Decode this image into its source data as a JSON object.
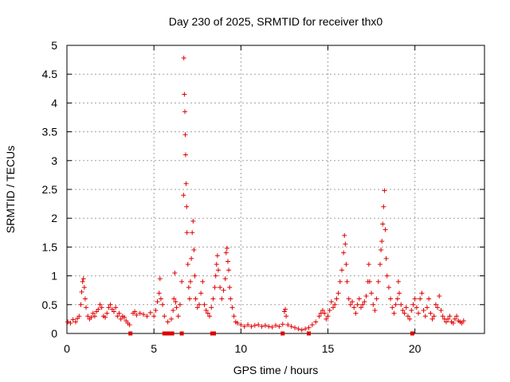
{
  "chart_data": {
    "type": "scatter",
    "title": "Day 230 of 2025, SRMTID for receiver thx0",
    "xlabel": "GPS time / hours",
    "ylabel": "SRMTID / TECUs",
    "xlim": [
      0,
      24
    ],
    "ylim": [
      0,
      5
    ],
    "xticks": [
      0,
      5,
      10,
      15,
      20
    ],
    "xtick_labels": [
      "0",
      "5",
      "10",
      "15",
      "20"
    ],
    "yticks": [
      0,
      0.5,
      1,
      1.5,
      2,
      2.5,
      3,
      3.5,
      4,
      4.5,
      5
    ],
    "ytick_labels": [
      "0",
      "0.5",
      "1",
      "1.5",
      "2",
      "2.5",
      "3",
      "3.5",
      "4",
      "4.5",
      "5"
    ],
    "grid": true,
    "marker": "plus",
    "color": "#e00000",
    "series": [
      {
        "name": "SRMTID",
        "points": [
          [
            0.05,
            0.2
          ],
          [
            0.2,
            0.18
          ],
          [
            0.35,
            0.24
          ],
          [
            0.5,
            0.2
          ],
          [
            0.6,
            0.26
          ],
          [
            0.7,
            0.3
          ],
          [
            0.8,
            0.5
          ],
          [
            0.85,
            0.72
          ],
          [
            0.9,
            0.9
          ],
          [
            0.95,
            0.95
          ],
          [
            1.0,
            0.8
          ],
          [
            1.05,
            0.6
          ],
          [
            1.1,
            0.45
          ],
          [
            1.2,
            0.3
          ],
          [
            1.3,
            0.25
          ],
          [
            1.4,
            0.28
          ],
          [
            1.5,
            0.35
          ],
          [
            1.6,
            0.3
          ],
          [
            1.7,
            0.38
          ],
          [
            1.8,
            0.42
          ],
          [
            1.9,
            0.5
          ],
          [
            2.0,
            0.45
          ],
          [
            2.1,
            0.3
          ],
          [
            2.2,
            0.28
          ],
          [
            2.3,
            0.35
          ],
          [
            2.4,
            0.45
          ],
          [
            2.5,
            0.5
          ],
          [
            2.6,
            0.42
          ],
          [
            2.7,
            0.38
          ],
          [
            2.8,
            0.45
          ],
          [
            2.9,
            0.3
          ],
          [
            3.0,
            0.35
          ],
          [
            3.1,
            0.25
          ],
          [
            3.2,
            0.3
          ],
          [
            3.3,
            0.28
          ],
          [
            3.4,
            0.22
          ],
          [
            3.5,
            0.18
          ],
          [
            3.6,
            0.15
          ],
          [
            3.8,
            0.35
          ],
          [
            3.9,
            0.38
          ],
          [
            4.0,
            0.32
          ],
          [
            4.2,
            0.35
          ],
          [
            4.4,
            0.33
          ],
          [
            4.6,
            0.3
          ],
          [
            4.8,
            0.36
          ],
          [
            5.0,
            0.3
          ],
          [
            5.1,
            0.4
          ],
          [
            5.2,
            0.55
          ],
          [
            5.3,
            0.7
          ],
          [
            5.35,
            0.95
          ],
          [
            5.4,
            0.6
          ],
          [
            5.5,
            0.5
          ],
          [
            5.6,
            0.3
          ],
          [
            5.8,
            0.2
          ],
          [
            6.0,
            0.25
          ],
          [
            6.1,
            0.4
          ],
          [
            6.15,
            0.6
          ],
          [
            6.2,
            1.05
          ],
          [
            6.25,
            0.55
          ],
          [
            6.3,
            0.45
          ],
          [
            6.4,
            0.3
          ],
          [
            6.5,
            0.5
          ],
          [
            6.6,
            0.9
          ],
          [
            6.7,
            2.4
          ],
          [
            6.72,
            4.78
          ],
          [
            6.75,
            4.15
          ],
          [
            6.78,
            3.85
          ],
          [
            6.8,
            3.45
          ],
          [
            6.82,
            3.1
          ],
          [
            6.85,
            2.6
          ],
          [
            6.88,
            2.2
          ],
          [
            6.9,
            1.75
          ],
          [
            6.95,
            1.2
          ],
          [
            7.0,
            0.8
          ],
          [
            7.05,
            0.6
          ],
          [
            7.1,
            0.9
          ],
          [
            7.15,
            1.3
          ],
          [
            7.2,
            1.75
          ],
          [
            7.25,
            1.95
          ],
          [
            7.3,
            1.45
          ],
          [
            7.35,
            1.0
          ],
          [
            7.4,
            0.6
          ],
          [
            7.5,
            0.45
          ],
          [
            7.6,
            0.5
          ],
          [
            7.7,
            0.7
          ],
          [
            7.8,
            0.9
          ],
          [
            7.9,
            0.5
          ],
          [
            8.0,
            0.4
          ],
          [
            8.1,
            0.35
          ],
          [
            8.2,
            0.3
          ],
          [
            8.3,
            0.45
          ],
          [
            8.4,
            0.6
          ],
          [
            8.5,
            0.8
          ],
          [
            8.55,
            1.0
          ],
          [
            8.6,
            1.2
          ],
          [
            8.65,
            1.35
          ],
          [
            8.7,
            1.1
          ],
          [
            8.8,
            0.8
          ],
          [
            8.9,
            0.6
          ],
          [
            9.0,
            0.75
          ],
          [
            9.1,
            0.95
          ],
          [
            9.15,
            1.4
          ],
          [
            9.2,
            1.48
          ],
          [
            9.25,
            1.25
          ],
          [
            9.3,
            1.1
          ],
          [
            9.35,
            0.8
          ],
          [
            9.4,
            0.6
          ],
          [
            9.5,
            0.45
          ],
          [
            9.6,
            0.3
          ],
          [
            9.7,
            0.2
          ],
          [
            9.8,
            0.18
          ],
          [
            10.0,
            0.15
          ],
          [
            10.2,
            0.12
          ],
          [
            10.4,
            0.15
          ],
          [
            10.6,
            0.12
          ],
          [
            10.8,
            0.14
          ],
          [
            11.0,
            0.15
          ],
          [
            11.2,
            0.12
          ],
          [
            11.4,
            0.14
          ],
          [
            11.6,
            0.12
          ],
          [
            11.8,
            0.11
          ],
          [
            12.0,
            0.14
          ],
          [
            12.2,
            0.12
          ],
          [
            12.4,
            0.16
          ],
          [
            12.5,
            0.38
          ],
          [
            12.55,
            0.42
          ],
          [
            12.6,
            0.3
          ],
          [
            12.7,
            0.15
          ],
          [
            12.9,
            0.12
          ],
          [
            13.1,
            0.1
          ],
          [
            13.3,
            0.08
          ],
          [
            13.5,
            0.06
          ],
          [
            13.7,
            0.08
          ],
          [
            13.9,
            0.1
          ],
          [
            14.1,
            0.15
          ],
          [
            14.3,
            0.2
          ],
          [
            14.5,
            0.3
          ],
          [
            14.6,
            0.35
          ],
          [
            14.7,
            0.4
          ],
          [
            14.8,
            0.35
          ],
          [
            14.9,
            0.25
          ],
          [
            15.0,
            0.3
          ],
          [
            15.1,
            0.4
          ],
          [
            15.2,
            0.55
          ],
          [
            15.3,
            0.45
          ],
          [
            15.4,
            0.5
          ],
          [
            15.5,
            0.6
          ],
          [
            15.6,
            0.7
          ],
          [
            15.7,
            0.9
          ],
          [
            15.8,
            1.1
          ],
          [
            15.9,
            1.4
          ],
          [
            15.95,
            1.7
          ],
          [
            16.0,
            1.55
          ],
          [
            16.05,
            1.2
          ],
          [
            16.1,
            0.9
          ],
          [
            16.2,
            0.6
          ],
          [
            16.3,
            0.5
          ],
          [
            16.4,
            0.55
          ],
          [
            16.5,
            0.45
          ],
          [
            16.6,
            0.35
          ],
          [
            16.7,
            0.5
          ],
          [
            16.8,
            0.6
          ],
          [
            16.9,
            0.45
          ],
          [
            17.0,
            0.5
          ],
          [
            17.1,
            0.55
          ],
          [
            17.2,
            0.65
          ],
          [
            17.3,
            0.9
          ],
          [
            17.35,
            1.2
          ],
          [
            17.4,
            0.9
          ],
          [
            17.5,
            0.7
          ],
          [
            17.6,
            0.5
          ],
          [
            17.7,
            0.4
          ],
          [
            17.8,
            0.6
          ],
          [
            17.9,
            0.9
          ],
          [
            18.0,
            1.2
          ],
          [
            18.05,
            1.45
          ],
          [
            18.1,
            1.6
          ],
          [
            18.15,
            1.9
          ],
          [
            18.2,
            2.2
          ],
          [
            18.25,
            2.48
          ],
          [
            18.3,
            1.8
          ],
          [
            18.35,
            1.3
          ],
          [
            18.4,
            1.0
          ],
          [
            18.5,
            0.8
          ],
          [
            18.6,
            0.6
          ],
          [
            18.7,
            0.45
          ],
          [
            18.8,
            0.35
          ],
          [
            18.9,
            0.5
          ],
          [
            19.0,
            0.6
          ],
          [
            19.05,
            0.9
          ],
          [
            19.1,
            0.7
          ],
          [
            19.2,
            0.5
          ],
          [
            19.3,
            0.4
          ],
          [
            19.4,
            0.35
          ],
          [
            19.5,
            0.45
          ],
          [
            19.6,
            0.3
          ],
          [
            19.7,
            0.25
          ],
          [
            19.8,
            0.4
          ],
          [
            19.9,
            0.5
          ],
          [
            20.0,
            0.6
          ],
          [
            20.1,
            0.45
          ],
          [
            20.2,
            0.35
          ],
          [
            20.3,
            0.6
          ],
          [
            20.4,
            0.7
          ],
          [
            20.5,
            0.4
          ],
          [
            20.6,
            0.3
          ],
          [
            20.7,
            0.45
          ],
          [
            20.8,
            0.6
          ],
          [
            20.9,
            0.35
          ],
          [
            21.0,
            0.25
          ],
          [
            21.1,
            0.3
          ],
          [
            21.2,
            0.5
          ],
          [
            21.3,
            0.45
          ],
          [
            21.4,
            0.65
          ],
          [
            21.5,
            0.4
          ],
          [
            21.6,
            0.3
          ],
          [
            21.7,
            0.25
          ],
          [
            21.8,
            0.2
          ],
          [
            21.9,
            0.25
          ],
          [
            22.0,
            0.3
          ],
          [
            22.1,
            0.2
          ],
          [
            22.2,
            0.18
          ],
          [
            22.3,
            0.25
          ],
          [
            22.4,
            0.3
          ],
          [
            22.5,
            0.22
          ],
          [
            22.6,
            0.2
          ],
          [
            22.7,
            0.18
          ],
          [
            22.8,
            0.22
          ]
        ]
      },
      {
        "name": "zero-markers",
        "points": [
          [
            3.65,
            0
          ],
          [
            5.6,
            0
          ],
          [
            5.75,
            0
          ],
          [
            5.85,
            0
          ],
          [
            5.95,
            0
          ],
          [
            6.05,
            0
          ],
          [
            6.6,
            0
          ],
          [
            8.35,
            0
          ],
          [
            8.45,
            0
          ],
          [
            12.4,
            0
          ],
          [
            13.9,
            0
          ],
          [
            19.85,
            0
          ]
        ]
      }
    ]
  }
}
